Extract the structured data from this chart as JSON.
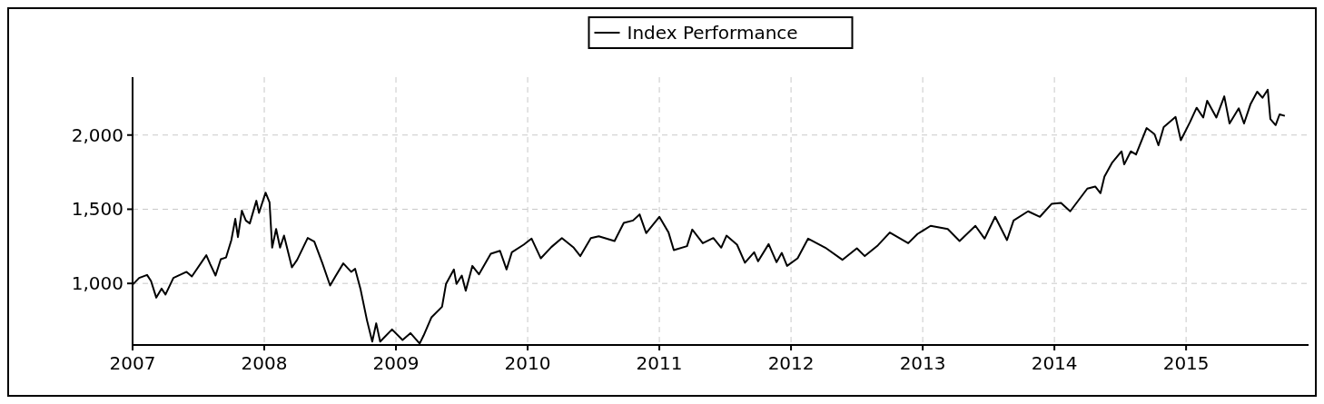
{
  "chart_data": {
    "type": "line",
    "legend": "top",
    "grid": true,
    "line_style": "solid",
    "xlim": [
      2007,
      2015.93
    ],
    "xticks": [
      2007,
      2008,
      2009,
      2010,
      2011,
      2012,
      2013,
      2014,
      2015
    ],
    "ylim": [
      585,
      2390
    ],
    "yticks": [
      {
        "value": 1000,
        "label": "1,000"
      },
      {
        "value": 1500,
        "label": "1,500"
      },
      {
        "value": 2000,
        "label": "2,000"
      }
    ],
    "series": [
      {
        "name": "Index Performance",
        "color": "#000000",
        "x": [
          2007.0,
          2007.005,
          2007.05,
          2007.11,
          2007.14,
          2007.18,
          2007.22,
          2007.25,
          2007.31,
          2007.41,
          2007.45,
          2007.56,
          2007.59,
          2007.63,
          2007.67,
          2007.71,
          2007.75,
          2007.78,
          2007.8,
          2007.83,
          2007.86,
          2007.89,
          2007.94,
          2007.96,
          2008.01,
          2008.04,
          2008.06,
          2008.09,
          2008.12,
          2008.15,
          2008.21,
          2008.25,
          2008.33,
          2008.38,
          2008.44,
          2008.5,
          2008.54,
          2008.6,
          2008.66,
          2008.69,
          2008.73,
          2008.78,
          2008.82,
          2008.85,
          2008.88,
          2008.97,
          2009.05,
          2009.11,
          2009.18,
          2009.21,
          2009.27,
          2009.35,
          2009.38,
          2009.44,
          2009.46,
          2009.5,
          2009.53,
          2009.58,
          2009.63,
          2009.72,
          2009.79,
          2009.84,
          2009.88,
          2009.97,
          2010.03,
          2010.1,
          2010.18,
          2010.26,
          2010.35,
          2010.4,
          2010.48,
          2010.54,
          2010.66,
          2010.73,
          2010.8,
          2010.85,
          2010.9,
          2011.0,
          2011.07,
          2011.11,
          2011.21,
          2011.25,
          2011.33,
          2011.41,
          2011.47,
          2011.51,
          2011.59,
          2011.65,
          2011.72,
          2011.75,
          2011.83,
          2011.89,
          2011.93,
          2011.97,
          2012.05,
          2012.13,
          2012.26,
          2012.39,
          2012.5,
          2012.56,
          2012.66,
          2012.75,
          2012.89,
          2012.96,
          2013.06,
          2013.19,
          2013.28,
          2013.4,
          2013.47,
          2013.55,
          2013.64,
          2013.69,
          2013.8,
          2013.89,
          2013.98,
          2014.05,
          2014.12,
          2014.25,
          2014.31,
          2014.35,
          2014.38,
          2014.44,
          2014.51,
          2014.53,
          2014.58,
          2014.62,
          2014.7,
          2014.76,
          2014.79,
          2014.83,
          2014.92,
          2014.96,
          2015.03,
          2015.08,
          2015.13,
          2015.16,
          2015.23,
          2015.29,
          2015.33,
          2015.4,
          2015.44,
          2015.49,
          2015.54,
          2015.58,
          2015.62,
          2015.64,
          2015.68,
          2015.71,
          2015.75
        ],
        "values": [
          1000,
          996,
          1037,
          1057,
          1016,
          904,
          965,
          925,
          1037,
          1078,
          1047,
          1190,
          1129,
          1053,
          1163,
          1175,
          1292,
          1435,
          1312,
          1490,
          1424,
          1404,
          1557,
          1475,
          1612,
          1547,
          1241,
          1367,
          1241,
          1322,
          1108,
          1159,
          1306,
          1282,
          1139,
          986,
          1047,
          1135,
          1078,
          1098,
          965,
          751,
          608,
          731,
          608,
          690,
          619,
          665,
          595,
          649,
          772,
          843,
          996,
          1094,
          996,
          1053,
          951,
          1118,
          1061,
          1200,
          1220,
          1094,
          1210,
          1261,
          1302,
          1169,
          1245,
          1306,
          1241,
          1184,
          1306,
          1318,
          1286,
          1408,
          1424,
          1465,
          1339,
          1449,
          1343,
          1224,
          1251,
          1363,
          1271,
          1306,
          1241,
          1322,
          1261,
          1139,
          1210,
          1149,
          1265,
          1143,
          1206,
          1118,
          1169,
          1302,
          1241,
          1159,
          1237,
          1184,
          1257,
          1343,
          1271,
          1333,
          1388,
          1367,
          1286,
          1388,
          1302,
          1449,
          1292,
          1424,
          1486,
          1449,
          1537,
          1543,
          1486,
          1639,
          1653,
          1608,
          1720,
          1816,
          1890,
          1802,
          1890,
          1869,
          2047,
          2006,
          1931,
          2053,
          2122,
          1965,
          2088,
          2184,
          2118,
          2231,
          2118,
          2261,
          2078,
          2180,
          2078,
          2210,
          2292,
          2251,
          2306,
          2108,
          2067,
          2139,
          2129
        ]
      }
    ]
  }
}
